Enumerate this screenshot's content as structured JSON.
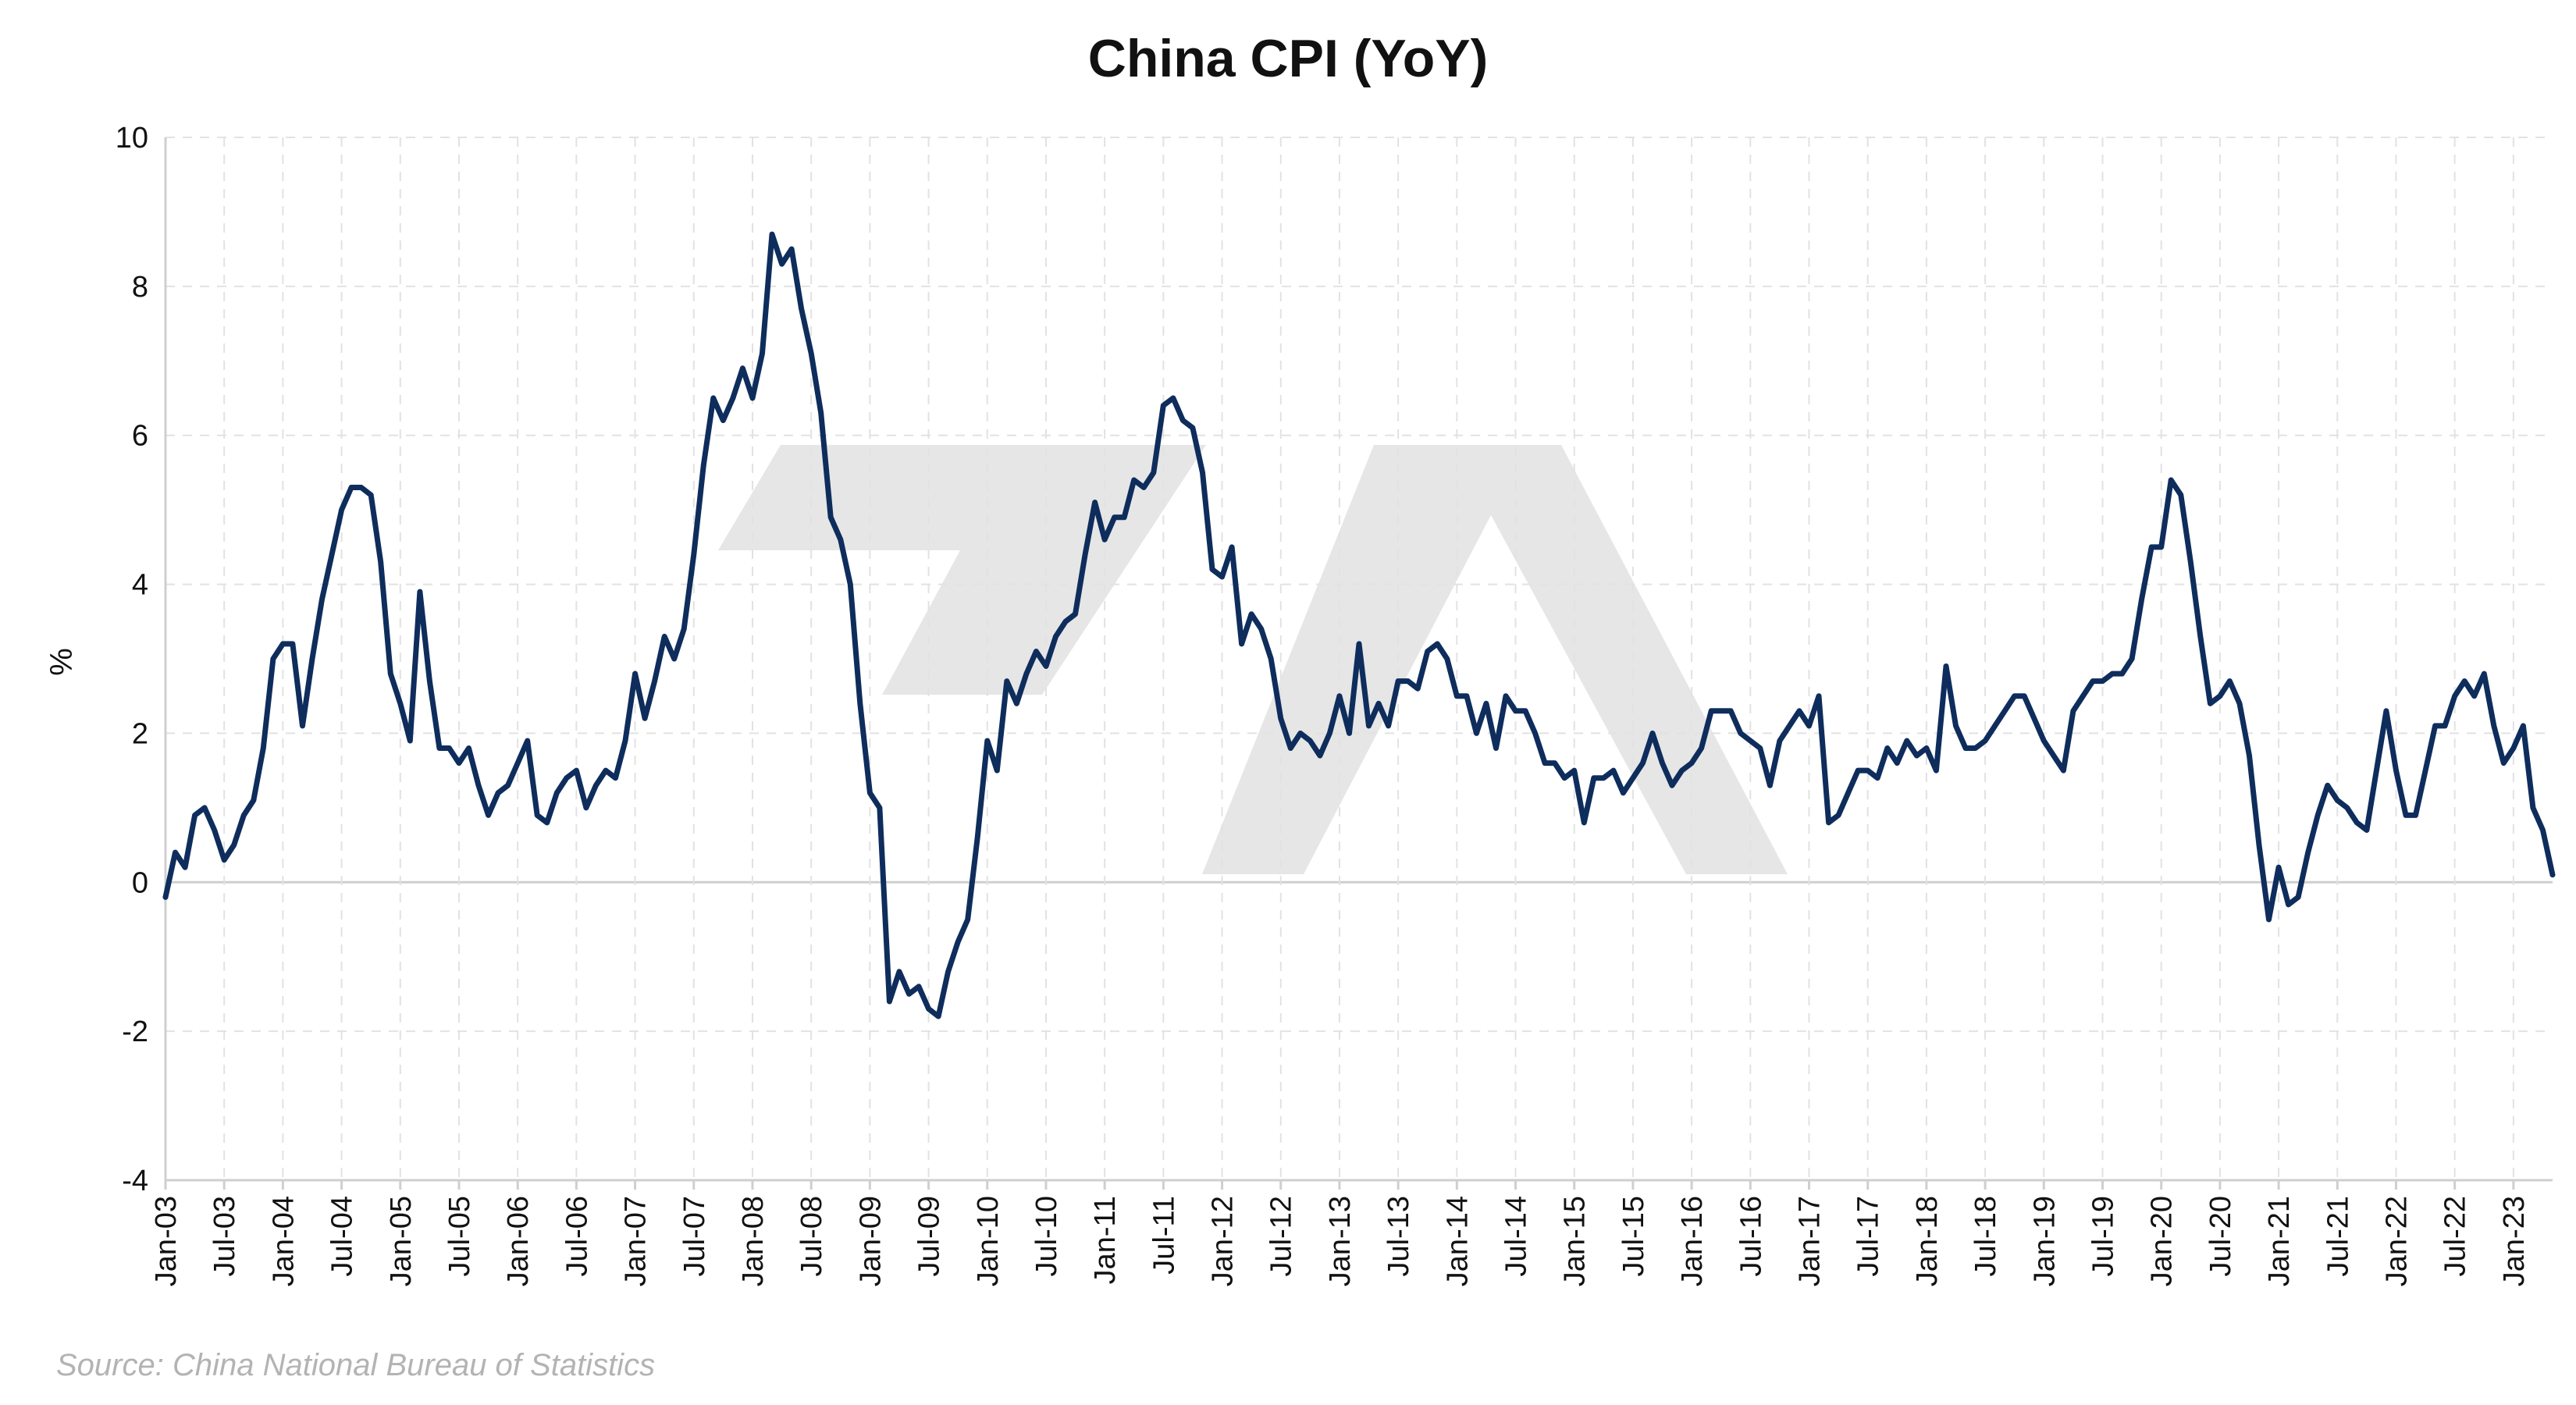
{
  "title": "China CPI (YoY)",
  "source": "Source: China National Bureau of Statistics",
  "colors": {
    "series": "#0e2d5c",
    "grid": "#e2e2e2",
    "watermark": "#e6e6e6"
  },
  "chart_data": {
    "type": "line",
    "title": "China CPI (YoY)",
    "xlabel": "",
    "ylabel": "%",
    "ylim": [
      -4,
      10
    ],
    "yticks": [
      -4,
      -2,
      0,
      2,
      4,
      6,
      8,
      10
    ],
    "grid": true,
    "legend": "none",
    "x_start": "Jan-03",
    "x_end": "Jul-23",
    "xtick_labels": [
      "Jan-03",
      "Jul-03",
      "Jan-04",
      "Jul-04",
      "Jan-05",
      "Jul-05",
      "Jan-06",
      "Jul-06",
      "Jan-07",
      "Jul-07",
      "Jan-08",
      "Jul-08",
      "Jan-09",
      "Jul-09",
      "Jan-10",
      "Jul-10",
      "Jan-11",
      "Jul-11",
      "Jan-12",
      "Jul-12",
      "Jan-13",
      "Jul-13",
      "Jan-14",
      "Jul-14",
      "Jan-15",
      "Jul-15",
      "Jan-16",
      "Jul-16",
      "Jan-17",
      "Jul-17",
      "Jan-18",
      "Jul-18",
      "Jan-19",
      "Jul-19",
      "Jan-20",
      "Jul-20",
      "Jan-21",
      "Jul-21",
      "Jan-22",
      "Jul-22",
      "Jan-23"
    ],
    "series": [
      {
        "frequency": "monthly",
        "values": [
          -0.2,
          0.4,
          0.2,
          0.9,
          1.0,
          0.7,
          0.3,
          0.5,
          0.9,
          1.1,
          1.8,
          3.0,
          3.2,
          3.2,
          2.1,
          3.0,
          3.8,
          4.4,
          5.0,
          5.3,
          5.3,
          5.2,
          4.3,
          2.8,
          2.4,
          1.9,
          3.9,
          2.7,
          1.8,
          1.8,
          1.6,
          1.8,
          1.3,
          0.9,
          1.2,
          1.3,
          1.6,
          1.9,
          0.9,
          0.8,
          1.2,
          1.4,
          1.5,
          1.0,
          1.3,
          1.5,
          1.4,
          1.9,
          2.8,
          2.2,
          2.7,
          3.3,
          3.0,
          3.4,
          4.4,
          5.6,
          6.5,
          6.2,
          6.5,
          6.9,
          6.5,
          7.1,
          8.7,
          8.3,
          8.5,
          7.7,
          7.1,
          6.3,
          4.9,
          4.6,
          4.0,
          2.4,
          1.2,
          1.0,
          -1.6,
          -1.2,
          -1.5,
          -1.4,
          -1.7,
          -1.8,
          -1.2,
          -0.8,
          -0.5,
          0.6,
          1.9,
          1.5,
          2.7,
          2.4,
          2.8,
          3.1,
          2.9,
          3.3,
          3.5,
          3.6,
          4.4,
          5.1,
          4.6,
          4.9,
          4.9,
          5.4,
          5.3,
          5.5,
          6.4,
          6.5,
          6.2,
          6.1,
          5.5,
          4.2,
          4.1,
          4.5,
          3.2,
          3.6,
          3.4,
          3.0,
          2.2,
          1.8,
          2.0,
          1.9,
          1.7,
          2.0,
          2.5,
          2.0,
          3.2,
          2.1,
          2.4,
          2.1,
          2.7,
          2.7,
          2.6,
          3.1,
          3.2,
          3.0,
          2.5,
          2.5,
          2.0,
          2.4,
          1.8,
          2.5,
          2.3,
          2.3,
          2.0,
          1.6,
          1.6,
          1.4,
          1.5,
          0.8,
          1.4,
          1.4,
          1.5,
          1.2,
          1.4,
          1.6,
          2.0,
          1.6,
          1.3,
          1.5,
          1.6,
          1.8,
          2.3,
          2.3,
          2.3,
          2.0,
          1.9,
          1.8,
          1.3,
          1.9,
          2.1,
          2.3,
          2.1,
          2.5,
          0.8,
          0.9,
          1.2,
          1.5,
          1.5,
          1.4,
          1.8,
          1.6,
          1.9,
          1.7,
          1.8,
          1.5,
          2.9,
          2.1,
          1.8,
          1.8,
          1.9,
          2.1,
          2.3,
          2.5,
          2.5,
          2.2,
          1.9,
          1.7,
          1.5,
          2.3,
          2.5,
          2.7,
          2.7,
          2.8,
          2.8,
          3.0,
          3.8,
          4.5,
          4.5,
          5.4,
          5.2,
          4.3,
          3.3,
          2.4,
          2.5,
          2.7,
          2.4,
          1.7,
          0.5,
          -0.5,
          0.2,
          -0.3,
          -0.2,
          0.4,
          0.9,
          1.3,
          1.1,
          1.0,
          0.8,
          0.7,
          1.5,
          2.3,
          1.5,
          0.9,
          0.9,
          1.5,
          2.1,
          2.1,
          2.5,
          2.7,
          2.5,
          2.8,
          2.1,
          1.6,
          1.8,
          2.1,
          1.0,
          0.7,
          0.1
        ]
      }
    ]
  }
}
